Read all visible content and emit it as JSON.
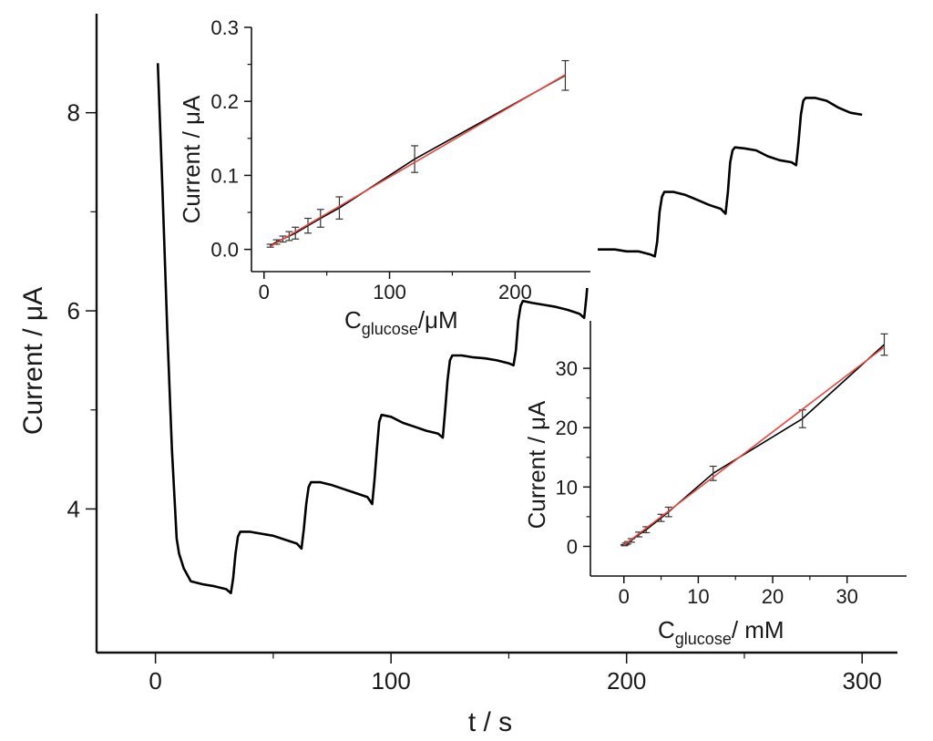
{
  "chart_data": [
    {
      "id": "main",
      "type": "line",
      "xlabel": "t / s",
      "ylabel": "Current / μA",
      "xlim": [
        -25,
        315
      ],
      "ylim": [
        2.55,
        9.0
      ],
      "xticks": [
        "0",
        "100",
        "200",
        "300"
      ],
      "yticks": [
        "4",
        "6",
        "8"
      ],
      "series": [
        {
          "color": "#000000",
          "x": [
            1,
            3,
            5,
            7,
            9,
            10,
            12,
            15,
            20,
            25,
            30,
            32,
            33,
            34,
            35,
            36,
            40,
            45,
            50,
            55,
            60,
            62,
            63,
            64,
            65,
            66,
            70,
            75,
            80,
            85,
            90,
            92,
            93,
            94,
            95,
            96,
            100,
            105,
            110,
            115,
            120,
            122,
            123,
            124,
            125,
            126,
            130,
            135,
            140,
            145,
            150,
            152,
            153,
            154,
            155,
            156,
            160,
            165,
            170,
            175,
            180,
            182,
            183,
            184,
            185,
            186,
            190,
            195,
            200,
            205,
            210,
            212,
            213,
            214,
            215,
            216,
            220,
            225,
            230,
            235,
            240,
            242,
            243,
            244,
            245,
            246,
            250,
            255,
            260,
            265,
            270,
            272,
            273,
            274,
            275,
            276,
            280,
            285,
            290,
            295,
            300
          ],
          "y": [
            8.5,
            7.2,
            5.8,
            4.6,
            3.7,
            3.55,
            3.4,
            3.27,
            3.24,
            3.22,
            3.19,
            3.15,
            3.3,
            3.55,
            3.72,
            3.77,
            3.77,
            3.75,
            3.73,
            3.69,
            3.65,
            3.6,
            3.8,
            4.05,
            4.22,
            4.27,
            4.27,
            4.24,
            4.2,
            4.16,
            4.12,
            4.05,
            4.3,
            4.6,
            4.88,
            4.95,
            4.93,
            4.87,
            4.83,
            4.79,
            4.76,
            4.72,
            5.0,
            5.3,
            5.5,
            5.55,
            5.55,
            5.53,
            5.52,
            5.5,
            5.47,
            5.45,
            5.6,
            5.9,
            6.05,
            6.1,
            6.08,
            6.06,
            6.04,
            6.01,
            5.97,
            5.93,
            6.15,
            6.45,
            6.6,
            6.62,
            6.62,
            6.62,
            6.6,
            6.6,
            6.57,
            6.55,
            6.7,
            7.0,
            7.15,
            7.2,
            7.2,
            7.17,
            7.12,
            7.07,
            7.03,
            6.98,
            7.2,
            7.5,
            7.62,
            7.65,
            7.64,
            7.62,
            7.56,
            7.52,
            7.5,
            7.47,
            7.7,
            7.98,
            8.12,
            8.15,
            8.15,
            8.12,
            8.05,
            8.0,
            7.98
          ]
        }
      ]
    },
    {
      "id": "inset-low",
      "type": "scatter",
      "xlabel_main": "C",
      "xlabel_sub": "glucose",
      "xlabel_tail": "/μM",
      "ylabel": "Current / μA",
      "xlim": [
        -10,
        260
      ],
      "ylim": [
        -0.03,
        0.3
      ],
      "xticks": [
        "0",
        "100",
        "200"
      ],
      "yticks": [
        "0.0",
        "0.1",
        "0.2",
        "0.3"
      ],
      "series": [
        {
          "type": "line",
          "color": "#000000",
          "x": [
            5,
            10,
            15,
            20,
            25,
            35,
            45,
            60,
            120,
            240
          ],
          "y": [
            0.005,
            0.01,
            0.014,
            0.018,
            0.022,
            0.032,
            0.042,
            0.056,
            0.122,
            0.235
          ],
          "err": [
            0.002,
            0.003,
            0.004,
            0.006,
            0.008,
            0.01,
            0.012,
            0.015,
            0.018,
            0.02
          ]
        },
        {
          "type": "fit",
          "color": "#e8483f",
          "x": [
            5,
            240
          ],
          "y": [
            0.004,
            0.236
          ]
        }
      ]
    },
    {
      "id": "inset-high",
      "type": "scatter",
      "xlabel_main": "C",
      "xlabel_sub": "glucose",
      "xlabel_tail": "/ mM",
      "ylabel": "Current / μA",
      "xlim": [
        -4.5,
        38
      ],
      "ylim": [
        -5,
        38
      ],
      "xticks": [
        "0",
        "10",
        "20",
        "30"
      ],
      "yticks": [
        "0",
        "10",
        "20",
        "30"
      ],
      "series": [
        {
          "type": "line",
          "color": "#000000",
          "x": [
            0.05,
            0.25,
            0.5,
            1,
            2,
            3,
            5,
            6,
            12,
            24,
            35
          ],
          "y": [
            0.2,
            0.4,
            0.6,
            1.0,
            2.0,
            2.8,
            4.8,
            5.8,
            12.3,
            21.5,
            34
          ],
          "err": [
            0.1,
            0.15,
            0.2,
            0.3,
            0.4,
            0.5,
            0.6,
            0.8,
            1.2,
            1.5,
            1.8
          ]
        },
        {
          "type": "fit",
          "color": "#e8483f",
          "x": [
            0,
            35
          ],
          "y": [
            0.2,
            33.6
          ]
        }
      ]
    }
  ]
}
